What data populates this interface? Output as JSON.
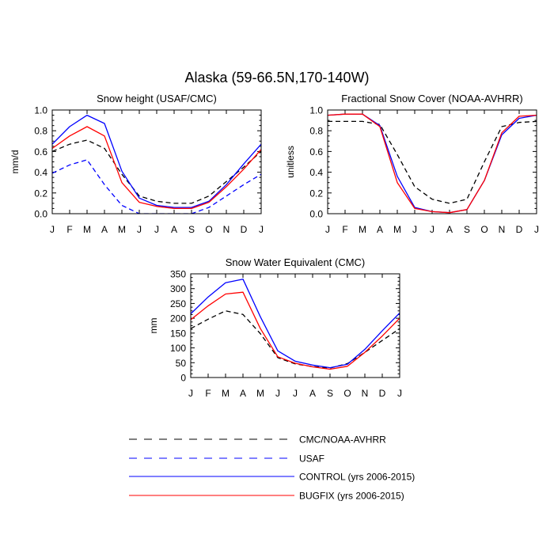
{
  "figure": {
    "title": "Alaska (59-66.5N,170-140W)"
  },
  "legend": {
    "placement": "bottom-center",
    "entries": [
      {
        "label": "CMC/NOAA-AVHRR",
        "color": "#000000",
        "dash": "dashed"
      },
      {
        "label": "USAF",
        "color": "#0000ff",
        "dash": "dashed"
      },
      {
        "label": "CONTROL (yrs 2006-2015)",
        "color": "#0000ff",
        "dash": "solid"
      },
      {
        "label": "BUGFIX (yrs 2006-2015)",
        "color": "#ff0000",
        "dash": "solid"
      }
    ]
  },
  "chart_data": [
    {
      "type": "line",
      "title": "Snow height (USAF/CMC)",
      "xlabel": "",
      "ylabel": "mm/d",
      "categories": [
        "J",
        "F",
        "M",
        "A",
        "M",
        "J",
        "J",
        "A",
        "S",
        "O",
        "N",
        "D",
        "J"
      ],
      "ylim": [
        0,
        1.0
      ],
      "yticks": [
        0.0,
        0.2,
        0.4,
        0.6,
        0.8,
        1.0
      ],
      "ytick_labels": [
        "0.0",
        "0.2",
        "0.4",
        "0.6",
        "0.8",
        "1.0"
      ],
      "grid": false,
      "series": [
        {
          "name": "CMC/NOAA-AVHRR",
          "color": "#000000",
          "dash": "dashed",
          "values": [
            0.6,
            0.67,
            0.71,
            0.63,
            0.38,
            0.17,
            0.12,
            0.1,
            0.1,
            0.17,
            0.31,
            0.45,
            0.6
          ]
        },
        {
          "name": "USAF",
          "color": "#0000ff",
          "dash": "dashed",
          "values": [
            0.39,
            0.47,
            0.52,
            0.28,
            0.08,
            0.0,
            0.0,
            0.0,
            0.0,
            0.06,
            0.17,
            0.28,
            0.38
          ]
        },
        {
          "name": "CONTROL (yrs 2006-2015)",
          "color": "#0000ff",
          "dash": "solid",
          "values": [
            0.67,
            0.84,
            0.95,
            0.87,
            0.41,
            0.15,
            0.08,
            0.06,
            0.06,
            0.12,
            0.28,
            0.48,
            0.67
          ]
        },
        {
          "name": "BUGFIX (yrs 2006-2015)",
          "color": "#ff0000",
          "dash": "solid",
          "values": [
            0.63,
            0.75,
            0.84,
            0.75,
            0.3,
            0.11,
            0.07,
            0.05,
            0.05,
            0.11,
            0.26,
            0.43,
            0.62
          ]
        }
      ]
    },
    {
      "type": "line",
      "title": "Fractional Snow Cover (NOAA-AVHRR)",
      "xlabel": "",
      "ylabel": "unitless",
      "categories": [
        "J",
        "F",
        "M",
        "A",
        "M",
        "J",
        "J",
        "A",
        "S",
        "O",
        "N",
        "D",
        "J"
      ],
      "ylim": [
        0,
        1.0
      ],
      "yticks": [
        0.0,
        0.2,
        0.4,
        0.6,
        0.8,
        1.0
      ],
      "ytick_labels": [
        "0.0",
        "0.2",
        "0.4",
        "0.6",
        "0.8",
        "1.0"
      ],
      "grid": false,
      "series": [
        {
          "name": "CMC/NOAA-AVHRR",
          "color": "#000000",
          "dash": "dashed",
          "values": [
            0.89,
            0.89,
            0.89,
            0.86,
            0.57,
            0.26,
            0.14,
            0.1,
            0.14,
            0.5,
            0.84,
            0.88,
            0.89
          ]
        },
        {
          "name": "CONTROL (yrs 2006-2015)",
          "color": "#0000ff",
          "dash": "solid",
          "values": [
            0.95,
            0.96,
            0.96,
            0.85,
            0.36,
            0.06,
            0.02,
            0.01,
            0.04,
            0.32,
            0.76,
            0.92,
            0.95
          ]
        },
        {
          "name": "BUGFIX (yrs 2006-2015)",
          "color": "#ff0000",
          "dash": "solid",
          "values": [
            0.95,
            0.96,
            0.96,
            0.84,
            0.3,
            0.05,
            0.02,
            0.01,
            0.04,
            0.32,
            0.78,
            0.94,
            0.95
          ]
        }
      ]
    },
    {
      "type": "line",
      "title": "Snow Water Equivalent (CMC)",
      "xlabel": "",
      "ylabel": "mm",
      "categories": [
        "J",
        "F",
        "M",
        "A",
        "M",
        "J",
        "J",
        "A",
        "S",
        "O",
        "N",
        "D",
        "J"
      ],
      "ylim": [
        0,
        350
      ],
      "yticks": [
        0,
        50,
        100,
        150,
        200,
        250,
        300,
        350
      ],
      "ytick_labels": [
        "0",
        "50",
        "100",
        "150",
        "200",
        "250",
        "300",
        "350"
      ],
      "grid": false,
      "series": [
        {
          "name": "CMC/NOAA-AVHRR",
          "color": "#000000",
          "dash": "dashed",
          "values": [
            165,
            197,
            225,
            213,
            148,
            67,
            46,
            37,
            32,
            47,
            85,
            125,
            165
          ]
        },
        {
          "name": "CONTROL (yrs 2006-2015)",
          "color": "#0000ff",
          "dash": "solid",
          "values": [
            215,
            272,
            320,
            332,
            205,
            90,
            55,
            42,
            33,
            45,
            95,
            158,
            218
          ]
        },
        {
          "name": "BUGFIX (yrs 2006-2015)",
          "color": "#ff0000",
          "dash": "solid",
          "values": [
            195,
            242,
            282,
            288,
            165,
            70,
            48,
            36,
            28,
            38,
            85,
            140,
            200
          ]
        }
      ]
    }
  ]
}
